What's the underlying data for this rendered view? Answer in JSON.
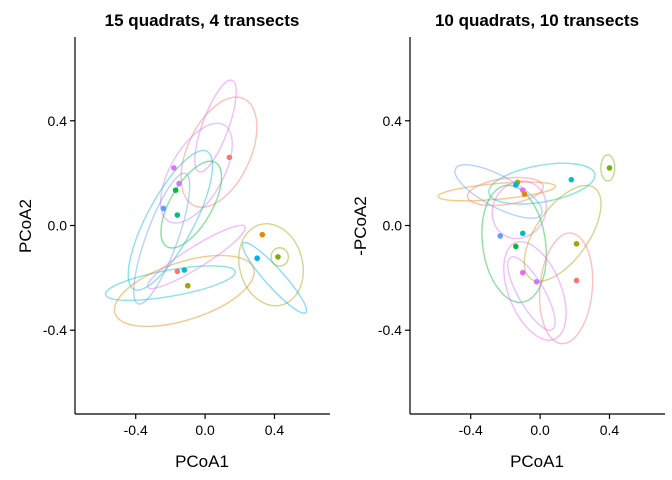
{
  "chart_data": [
    {
      "type": "scatter",
      "title": "15 quadrats, 4 transects",
      "xlabel": "PCoA1",
      "ylabel": "PCoA2",
      "xlim": [
        -0.75,
        0.72
      ],
      "ylim": [
        -0.72,
        0.72
      ],
      "xticks": [
        -0.4,
        0.0,
        0.4
      ],
      "xtick_labels": [
        "-0.4",
        "0.0",
        "0.4"
      ],
      "yticks": [
        -0.4,
        0.0,
        0.4
      ],
      "ytick_labels": [
        "-0.4",
        "0.0",
        "0.4"
      ],
      "grid": false,
      "legend": "none",
      "points": [
        {
          "x": 0.14,
          "y": 0.26,
          "color": "#f8766d"
        },
        {
          "x": -0.18,
          "y": 0.22,
          "color": "#d774f0"
        },
        {
          "x": -0.15,
          "y": 0.16,
          "color": "#c77cff"
        },
        {
          "x": -0.17,
          "y": 0.135,
          "color": "#00ba38"
        },
        {
          "x": -0.24,
          "y": 0.065,
          "color": "#619cff"
        },
        {
          "x": -0.16,
          "y": 0.04,
          "color": "#00bf7d"
        },
        {
          "x": 0.33,
          "y": -0.035,
          "color": "#e58700"
        },
        {
          "x": 0.3,
          "y": -0.125,
          "color": "#00b0f6"
        },
        {
          "x": 0.42,
          "y": -0.12,
          "color": "#7cae00"
        },
        {
          "x": -0.16,
          "y": -0.175,
          "color": "#f8766d"
        },
        {
          "x": -0.12,
          "y": -0.17,
          "color": "#00bfc4"
        },
        {
          "x": -0.1,
          "y": -0.23,
          "color": "#a3a500"
        }
      ],
      "ellipses": [
        {
          "cx": 0.08,
          "cy": 0.28,
          "rx": 0.34,
          "ry": 0.12,
          "angle": 65,
          "color": "#f8766d"
        },
        {
          "cx": 0.06,
          "cy": 0.38,
          "rx": 0.28,
          "ry": 0.05,
          "angle": 70,
          "color": "#e76bf3"
        },
        {
          "cx": -0.05,
          "cy": 0.2,
          "rx": 0.32,
          "ry": 0.1,
          "angle": 60,
          "color": "#c77cff"
        },
        {
          "cx": -0.08,
          "cy": 0.08,
          "rx": 0.28,
          "ry": 0.08,
          "angle": 60,
          "color": "#00ba38"
        },
        {
          "cx": -0.2,
          "cy": 0.02,
          "rx": 0.45,
          "ry": 0.09,
          "angle": 62,
          "color": "#00bfc4"
        },
        {
          "cx": -0.25,
          "cy": -0.05,
          "rx": 0.4,
          "ry": 0.06,
          "angle": 70,
          "color": "#619cff"
        },
        {
          "cx": 0.38,
          "cy": -0.15,
          "rx": 0.24,
          "ry": 0.12,
          "angle": -75,
          "color": "#a3a500"
        },
        {
          "cx": 0.4,
          "cy": -0.2,
          "rx": 0.27,
          "ry": 0.035,
          "angle": -48,
          "color": "#00b0f6"
        },
        {
          "cx": 0.43,
          "cy": -0.12,
          "rx": 0.05,
          "ry": 0.035,
          "angle": 0,
          "color": "#7cae00"
        },
        {
          "cx": -0.2,
          "cy": -0.22,
          "rx": 0.38,
          "ry": 0.05,
          "angle": 10,
          "color": "#00bfc4"
        },
        {
          "cx": -0.12,
          "cy": -0.25,
          "rx": 0.42,
          "ry": 0.11,
          "angle": 18,
          "color": "#e58700"
        },
        {
          "cx": -0.05,
          "cy": -0.12,
          "rx": 0.33,
          "ry": 0.04,
          "angle": 32,
          "color": "#e76bf3"
        }
      ]
    },
    {
      "type": "scatter",
      "title": "10 quadrats, 10 transects",
      "xlabel": "PCoA1",
      "ylabel": "-PCoA2",
      "xlim": [
        -0.75,
        0.72
      ],
      "ylim": [
        -0.72,
        0.72
      ],
      "xticks": [
        -0.4,
        0.0,
        0.4
      ],
      "xtick_labels": [
        "-0.4",
        "0.0",
        "0.4"
      ],
      "yticks": [
        -0.4,
        0.0,
        0.4
      ],
      "ytick_labels": [
        "-0.4",
        "0.0",
        "0.4"
      ],
      "grid": false,
      "legend": "none",
      "points": [
        {
          "x": 0.4,
          "y": 0.22,
          "color": "#7cae00"
        },
        {
          "x": 0.18,
          "y": 0.175,
          "color": "#00bfc4"
        },
        {
          "x": -0.13,
          "y": 0.165,
          "color": "#a3a500"
        },
        {
          "x": -0.14,
          "y": 0.155,
          "color": "#00b0f6"
        },
        {
          "x": -0.1,
          "y": 0.135,
          "color": "#e76bf3"
        },
        {
          "x": -0.09,
          "y": 0.12,
          "color": "#e58700"
        },
        {
          "x": -0.23,
          "y": -0.04,
          "color": "#619cff"
        },
        {
          "x": -0.1,
          "y": -0.03,
          "color": "#00bfc4"
        },
        {
          "x": -0.14,
          "y": -0.08,
          "color": "#00ba38"
        },
        {
          "x": 0.21,
          "y": -0.07,
          "color": "#a3a500"
        },
        {
          "x": -0.1,
          "y": -0.18,
          "color": "#e76bf3"
        },
        {
          "x": -0.02,
          "y": -0.215,
          "color": "#c77cff"
        },
        {
          "x": 0.21,
          "y": -0.21,
          "color": "#f8766d"
        }
      ],
      "ellipses": [
        {
          "cx": 0.01,
          "cy": 0.16,
          "rx": 0.31,
          "ry": 0.07,
          "angle": 10,
          "color": "#00bfc4"
        },
        {
          "cx": -0.25,
          "cy": 0.13,
          "rx": 0.34,
          "ry": 0.03,
          "angle": 5,
          "color": "#e58700"
        },
        {
          "cx": -0.24,
          "cy": 0.13,
          "rx": 0.28,
          "ry": 0.06,
          "angle": -28,
          "color": "#619cff"
        },
        {
          "cx": -0.2,
          "cy": 0.13,
          "rx": 0.22,
          "ry": 0.05,
          "angle": 8,
          "color": "#f8766d"
        },
        {
          "cx": -0.12,
          "cy": 0.06,
          "rx": 0.17,
          "ry": 0.1,
          "angle": 60,
          "color": "#e76bf3"
        },
        {
          "cx": 0.39,
          "cy": 0.22,
          "rx": 0.04,
          "ry": 0.05,
          "angle": 0,
          "color": "#7cae00"
        },
        {
          "cx": 0.13,
          "cy": -0.03,
          "rx": 0.32,
          "ry": 0.1,
          "angle": 55,
          "color": "#a3a500"
        },
        {
          "cx": -0.15,
          "cy": -0.07,
          "rx": 0.34,
          "ry": 0.12,
          "angle": -82,
          "color": "#00ba38"
        },
        {
          "cx": 0.15,
          "cy": -0.24,
          "rx": 0.32,
          "ry": 0.1,
          "angle": -95,
          "color": "#f8766d"
        },
        {
          "cx": -0.03,
          "cy": -0.25,
          "rx": 0.3,
          "ry": 0.1,
          "angle": -68,
          "color": "#e76bf3"
        },
        {
          "cx": -0.05,
          "cy": -0.26,
          "rx": 0.24,
          "ry": 0.05,
          "angle": -60,
          "color": "#c77cff"
        }
      ]
    }
  ]
}
